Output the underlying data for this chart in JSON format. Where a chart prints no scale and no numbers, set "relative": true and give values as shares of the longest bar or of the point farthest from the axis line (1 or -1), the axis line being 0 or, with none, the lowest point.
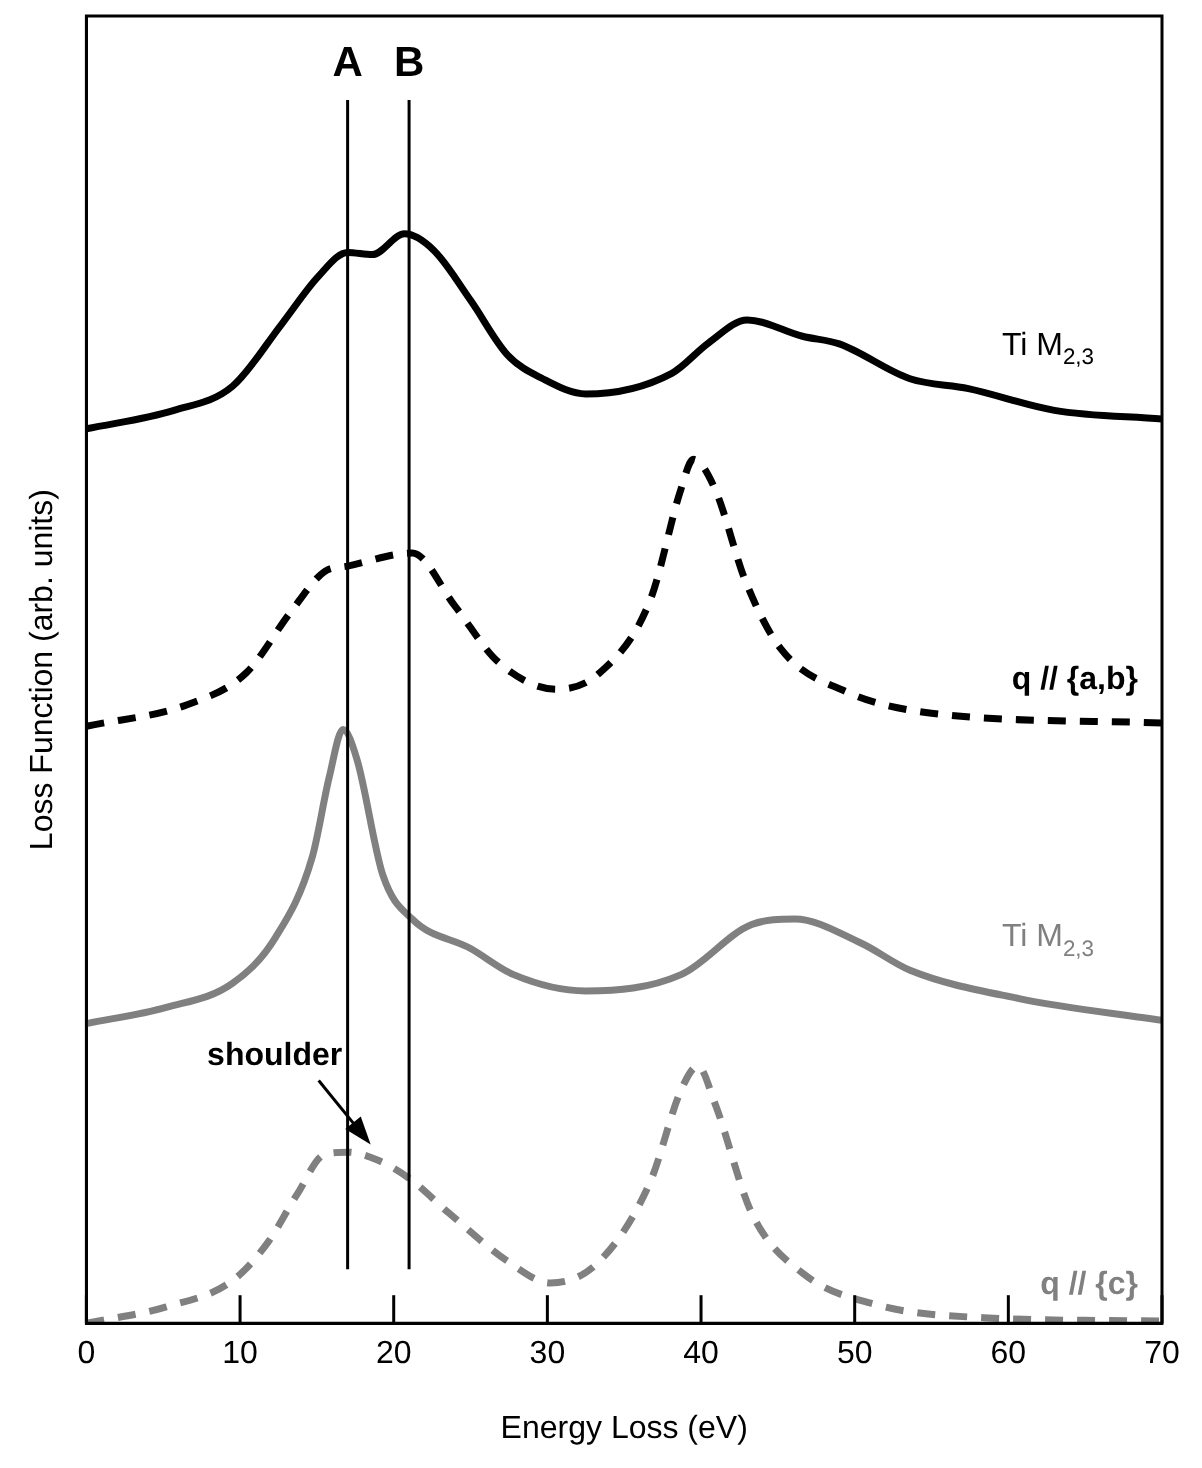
{
  "chart_data": {
    "type": "line",
    "relative": true,
    "xlabel": "Energy Loss (eV)",
    "ylabel": "Loss Function (arb. units)",
    "xlim": [
      0,
      70
    ],
    "xticks": [
      0,
      10,
      20,
      30,
      40,
      50,
      60,
      70
    ],
    "grid": false,
    "legend": false,
    "marker": "none",
    "series": [
      {
        "name": "Ti M$_{2,3}$",
        "color": "#000000",
        "line_style": "solid",
        "x": [
          0,
          5.7,
          9.5,
          12.7,
          15.1,
          17,
          18.6,
          20.7,
          22.6,
          25,
          27.4,
          29.7,
          32.5,
          38.1,
          40.5,
          43,
          46.6,
          49,
          53.6,
          57.4,
          63,
          70
        ],
        "values": [
          0.821,
          0.838,
          0.86,
          0.917,
          0.961,
          0.983,
          0.981,
          1.0,
          0.985,
          0.939,
          0.889,
          0.867,
          0.853,
          0.872,
          0.9,
          0.921,
          0.906,
          0.899,
          0.867,
          0.858,
          0.838,
          0.83
        ]
      },
      {
        "name": "q // {a,b}",
        "color": "#000000",
        "line_style": "dashed",
        "x": [
          0,
          6.6,
          10.4,
          13.3,
          15.5,
          17,
          21.2,
          24,
          26.8,
          30.6,
          33.4,
          36.7,
          38.7,
          39.5,
          40.9,
          42.9,
          45.2,
          49.4,
          55,
          70
        ],
        "values": [
          0.548,
          0.568,
          0.597,
          0.653,
          0.69,
          0.695,
          0.707,
          0.658,
          0.607,
          0.582,
          0.597,
          0.664,
          0.766,
          0.793,
          0.766,
          0.681,
          0.619,
          0.58,
          0.56,
          0.551
        ]
      },
      {
        "name": "Ti M$_{2,3}$",
        "color": "#808080",
        "line_style": "solid",
        "x": [
          0,
          5.2,
          9.5,
          12.3,
          14.7,
          15.8,
          16.7,
          17.6,
          19.3,
          21.2,
          25,
          27.8,
          32.5,
          38.7,
          43.3,
          46.1,
          50.4,
          53.6,
          60.7,
          70
        ],
        "values": [
          0.275,
          0.29,
          0.312,
          0.354,
          0.428,
          0.501,
          0.545,
          0.518,
          0.411,
          0.371,
          0.344,
          0.32,
          0.305,
          0.32,
          0.366,
          0.371,
          0.349,
          0.324,
          0.298,
          0.278
        ]
      },
      {
        "name": "q // {c}",
        "color": "#808080",
        "line_style": "dashed",
        "x": [
          0,
          5.2,
          9.5,
          11.8,
          13.7,
          15.5,
          17,
          18.9,
          21,
          23.6,
          27.4,
          30.2,
          33.4,
          36.7,
          38.7,
          39.8,
          40.9,
          43.3,
          46.6,
          51.4,
          58.4,
          70
        ],
        "values": [
          0.0,
          0.015,
          0.039,
          0.074,
          0.118,
          0.155,
          0.157,
          0.15,
          0.133,
          0.101,
          0.057,
          0.037,
          0.057,
          0.13,
          0.214,
          0.236,
          0.202,
          0.101,
          0.046,
          0.017,
          0.005,
          0.002
        ]
      }
    ],
    "ref_lines": [
      {
        "axis": "x",
        "value": 17,
        "label": "A",
        "color": "#000000"
      },
      {
        "axis": "x",
        "value": 21,
        "label": "B",
        "color": "#000000"
      }
    ],
    "annotations": [
      {
        "text": "shoulder",
        "x": 18.5,
        "y": 0.164
      }
    ]
  }
}
